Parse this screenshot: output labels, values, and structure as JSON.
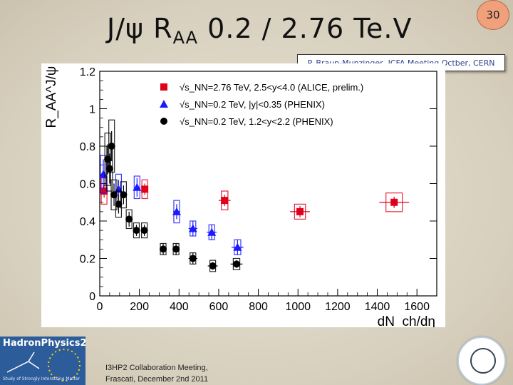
{
  "slide": {
    "title_main": "J/ψ R",
    "title_sub": "AA",
    "title_rest": " 0.2 / 2.76 Te.V",
    "page_number": "30",
    "credit": "P. Braun-Munzinger, ICFA Meeting Octber, CERN",
    "footer_line1": "I3HP2 Collaboration Meeting,",
    "footer_line2": "Frascati, December 2nd 2011",
    "logo_left_text": "HadronPhysics2",
    "logo_left_sub": "Study of Strongly Interacting Matter"
  },
  "chart_data": {
    "type": "scatter",
    "xlabel": "dN_ch/dη",
    "ylabel": "R_AA^J/ψ",
    "xlim": [
      0,
      1700
    ],
    "ylim": [
      0,
      1.2
    ],
    "x_ticks": [
      "0",
      "200",
      "400",
      "600",
      "800",
      "1000",
      "1200",
      "1400",
      "1600"
    ],
    "y_ticks": [
      "0",
      "0.2",
      "0.4",
      "0.6",
      "0.8",
      "1",
      "1.2"
    ],
    "legend_position": "top-right",
    "series": [
      {
        "name": "√s_NN=2.76 TeV, 2.5<y<4.0 (ALICE, prelim.)",
        "color": "#e0001a",
        "marker": "square",
        "points": [
          {
            "x": 22,
            "y": 0.56,
            "ex": 3,
            "ey": 0.035,
            "sys": 0.07
          },
          {
            "x": 227,
            "y": 0.57,
            "ex": 15,
            "ey": 0.03,
            "sys": 0.05
          },
          {
            "x": 630,
            "y": 0.51,
            "ex": 30,
            "ey": 0.03,
            "sys": 0.05
          },
          {
            "x": 1010,
            "y": 0.45,
            "ex": 50,
            "ey": 0.03,
            "sys": 0.04
          },
          {
            "x": 1485,
            "y": 0.5,
            "ex": 75,
            "ey": 0.03,
            "sys": 0.05
          }
        ]
      },
      {
        "name": "√s_NN=0.2 TeV, |y|<0.35 (PHENIX)",
        "color": "#1a1aff",
        "marker": "triangle",
        "points": [
          {
            "x": 18,
            "y": 0.65,
            "ex": 4,
            "ey": 0.08,
            "sys": 0.1
          },
          {
            "x": 95,
            "y": 0.57,
            "ex": 6,
            "ey": 0.05,
            "sys": 0.08
          },
          {
            "x": 188,
            "y": 0.58,
            "ex": 10,
            "ey": 0.05,
            "sys": 0.06
          },
          {
            "x": 388,
            "y": 0.45,
            "ex": 18,
            "ey": 0.04,
            "sys": 0.06
          },
          {
            "x": 470,
            "y": 0.36,
            "ex": 22,
            "ey": 0.04,
            "sys": 0.04
          },
          {
            "x": 565,
            "y": 0.34,
            "ex": 25,
            "ey": 0.04,
            "sys": 0.04
          },
          {
            "x": 695,
            "y": 0.26,
            "ex": 30,
            "ey": 0.04,
            "sys": 0.04
          }
        ]
      },
      {
        "name": "√s_NN=0.2 TeV, 1.2<y<2.2 (PHENIX)",
        "color": "#000000",
        "marker": "circle",
        "points": [
          {
            "x": 40,
            "y": 0.73,
            "ex": 3,
            "ey": 0.08,
            "sys": 0.14
          },
          {
            "x": 50,
            "y": 0.68,
            "ex": 3,
            "ey": 0.08,
            "sys": 0.12
          },
          {
            "x": 60,
            "y": 0.8,
            "ex": 3,
            "ey": 0.08,
            "sys": 0.14
          },
          {
            "x": 72,
            "y": 0.54,
            "ex": 4,
            "ey": 0.06,
            "sys": 0.08
          },
          {
            "x": 95,
            "y": 0.49,
            "ex": 5,
            "ey": 0.05,
            "sys": 0.07
          },
          {
            "x": 120,
            "y": 0.54,
            "ex": 6,
            "ey": 0.05,
            "sys": 0.07
          },
          {
            "x": 148,
            "y": 0.41,
            "ex": 8,
            "ey": 0.04,
            "sys": 0.05
          },
          {
            "x": 185,
            "y": 0.35,
            "ex": 10,
            "ey": 0.03,
            "sys": 0.04
          },
          {
            "x": 225,
            "y": 0.35,
            "ex": 12,
            "ey": 0.03,
            "sys": 0.04
          },
          {
            "x": 320,
            "y": 0.25,
            "ex": 15,
            "ey": 0.03,
            "sys": 0.03
          },
          {
            "x": 385,
            "y": 0.25,
            "ex": 18,
            "ey": 0.03,
            "sys": 0.03
          },
          {
            "x": 470,
            "y": 0.2,
            "ex": 22,
            "ey": 0.03,
            "sys": 0.03
          },
          {
            "x": 570,
            "y": 0.16,
            "ex": 25,
            "ey": 0.02,
            "sys": 0.03
          },
          {
            "x": 690,
            "y": 0.17,
            "ex": 30,
            "ey": 0.02,
            "sys": 0.03
          }
        ]
      }
    ]
  }
}
